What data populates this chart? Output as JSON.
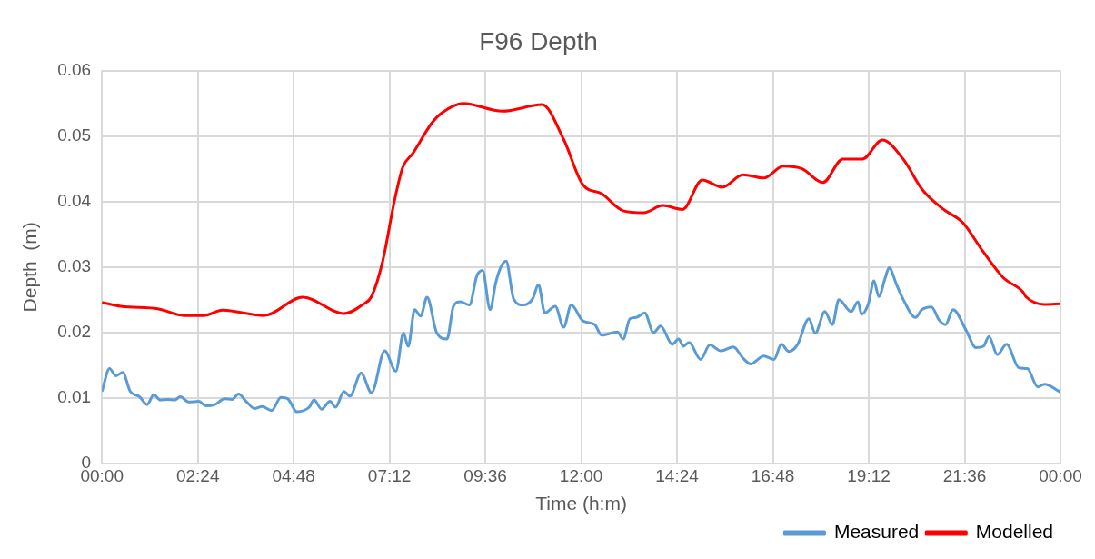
{
  "chart_data": {
    "type": "line",
    "title": "F96 Depth",
    "xlabel": "Time (h:m)",
    "ylabel": "Depth  (m)",
    "xlim": [
      0,
      24
    ],
    "xticks": [
      {
        "value": 0,
        "label": "00:00"
      },
      {
        "value": 2.4,
        "label": "02:24"
      },
      {
        "value": 4.8,
        "label": "04:48"
      },
      {
        "value": 7.2,
        "label": "07:12"
      },
      {
        "value": 9.6,
        "label": "09:36"
      },
      {
        "value": 12,
        "label": "12:00"
      },
      {
        "value": 14.4,
        "label": "14:24"
      },
      {
        "value": 16.8,
        "label": "16:48"
      },
      {
        "value": 19.2,
        "label": "19:12"
      },
      {
        "value": 21.6,
        "label": "21:36"
      },
      {
        "value": 24,
        "label": "00:00"
      }
    ],
    "ylim": [
      0,
      0.06
    ],
    "yticks": [
      0,
      0.01,
      0.02,
      0.03,
      0.04,
      0.05,
      0.06
    ],
    "grid": true,
    "legend": "bottom right",
    "marker": "none",
    "line_style": "solid",
    "series": [
      {
        "name": "Measured",
        "color": "#5b9bd5",
        "x": [
          0,
          0.19,
          0.35,
          0.52,
          0.71,
          0.94,
          1.13,
          1.3,
          1.46,
          1.65,
          1.82,
          1.96,
          2.17,
          2.43,
          2.6,
          2.83,
          3.07,
          3.26,
          3.42,
          3.61,
          3.82,
          4.01,
          4.25,
          4.48,
          4.65,
          4.88,
          5.19,
          5.31,
          5.5,
          5.71,
          5.85,
          6.06,
          6.21,
          6.49,
          6.75,
          7.08,
          7.36,
          7.55,
          7.67,
          7.83,
          7.98,
          8.14,
          8.38,
          8.64,
          8.8,
          8.97,
          9.2,
          9.39,
          9.53,
          9.72,
          9.86,
          9.98,
          10.12,
          10.31,
          10.55,
          10.78,
          10.93,
          11.09,
          11.35,
          11.56,
          11.75,
          12.04,
          12.34,
          12.51,
          12.91,
          13.05,
          13.22,
          13.38,
          13.59,
          13.81,
          13.99,
          14.28,
          14.44,
          14.56,
          14.7,
          14.99,
          15.22,
          15.5,
          15.81,
          16.05,
          16.24,
          16.57,
          16.83,
          17.01,
          17.2,
          17.42,
          17.7,
          17.86,
          18.1,
          18.29,
          18.45,
          18.76,
          18.93,
          19.02,
          19.19,
          19.33,
          19.45,
          19.61,
          19.71,
          19.89,
          20.06,
          20.37,
          20.53,
          20.77,
          20.96,
          21.12,
          21.31,
          21.64,
          21.88,
          22.07,
          22.21,
          22.42,
          22.65,
          22.96,
          23.17,
          23.43,
          23.6,
          24
        ],
        "values": [
          0.011,
          0.0145,
          0.0134,
          0.0139,
          0.011,
          0.0102,
          0.009,
          0.0105,
          0.0097,
          0.0098,
          0.0097,
          0.0102,
          0.0094,
          0.0095,
          0.0088,
          0.009,
          0.0099,
          0.0098,
          0.0106,
          0.0095,
          0.0084,
          0.0087,
          0.0081,
          0.0101,
          0.0099,
          0.0079,
          0.0086,
          0.0097,
          0.0083,
          0.0095,
          0.0086,
          0.011,
          0.0103,
          0.0138,
          0.0108,
          0.0172,
          0.0141,
          0.0199,
          0.0179,
          0.0235,
          0.0225,
          0.0254,
          0.02,
          0.019,
          0.024,
          0.0247,
          0.0242,
          0.0287,
          0.0295,
          0.0235,
          0.0276,
          0.0299,
          0.0309,
          0.0251,
          0.0242,
          0.0251,
          0.0273,
          0.023,
          0.024,
          0.0208,
          0.0242,
          0.0218,
          0.0212,
          0.0196,
          0.0201,
          0.019,
          0.0221,
          0.0223,
          0.023,
          0.02,
          0.021,
          0.0182,
          0.019,
          0.0179,
          0.0185,
          0.0159,
          0.0181,
          0.0172,
          0.0178,
          0.0161,
          0.0152,
          0.0164,
          0.0159,
          0.0182,
          0.0171,
          0.0182,
          0.0221,
          0.0199,
          0.0232,
          0.0212,
          0.025,
          0.0232,
          0.0247,
          0.0228,
          0.0244,
          0.0279,
          0.0255,
          0.0283,
          0.0299,
          0.0274,
          0.0251,
          0.0223,
          0.0235,
          0.0239,
          0.0219,
          0.0212,
          0.0235,
          0.0203,
          0.0177,
          0.0179,
          0.0194,
          0.0166,
          0.0182,
          0.0146,
          0.0145,
          0.0117,
          0.0121,
          0.0109
        ]
      },
      {
        "name": "Modelled",
        "color": "#ff0000",
        "x": [
          0,
          0.47,
          1.42,
          2.05,
          2.55,
          3.02,
          4.06,
          5.03,
          6.06,
          6.54,
          6.75,
          7.03,
          7.32,
          7.53,
          7.79,
          8.26,
          8.5,
          9.04,
          10.03,
          11.02,
          11.56,
          12.04,
          12.51,
          13.05,
          13.57,
          14.04,
          14.54,
          15.03,
          15.53,
          16.05,
          16.57,
          17.06,
          17.53,
          18.05,
          18.55,
          19.04,
          19.54,
          20.06,
          20.53,
          21.05,
          21.55,
          22.07,
          22.58,
          23.06,
          23.13,
          23.6,
          24
        ],
        "values": [
          0.0246,
          0.024,
          0.0236,
          0.0226,
          0.0226,
          0.0234,
          0.0226,
          0.0254,
          0.0229,
          0.0243,
          0.0255,
          0.0309,
          0.04,
          0.0452,
          0.0474,
          0.052,
          0.0535,
          0.055,
          0.0538,
          0.0548,
          0.0495,
          0.0426,
          0.0412,
          0.0386,
          0.0383,
          0.0394,
          0.0388,
          0.0433,
          0.0422,
          0.0441,
          0.0436,
          0.0454,
          0.045,
          0.0429,
          0.0465,
          0.0465,
          0.0494,
          0.0465,
          0.0419,
          0.0389,
          0.0368,
          0.0323,
          0.0283,
          0.0262,
          0.0255,
          0.0243,
          0.0244
        ]
      }
    ]
  }
}
